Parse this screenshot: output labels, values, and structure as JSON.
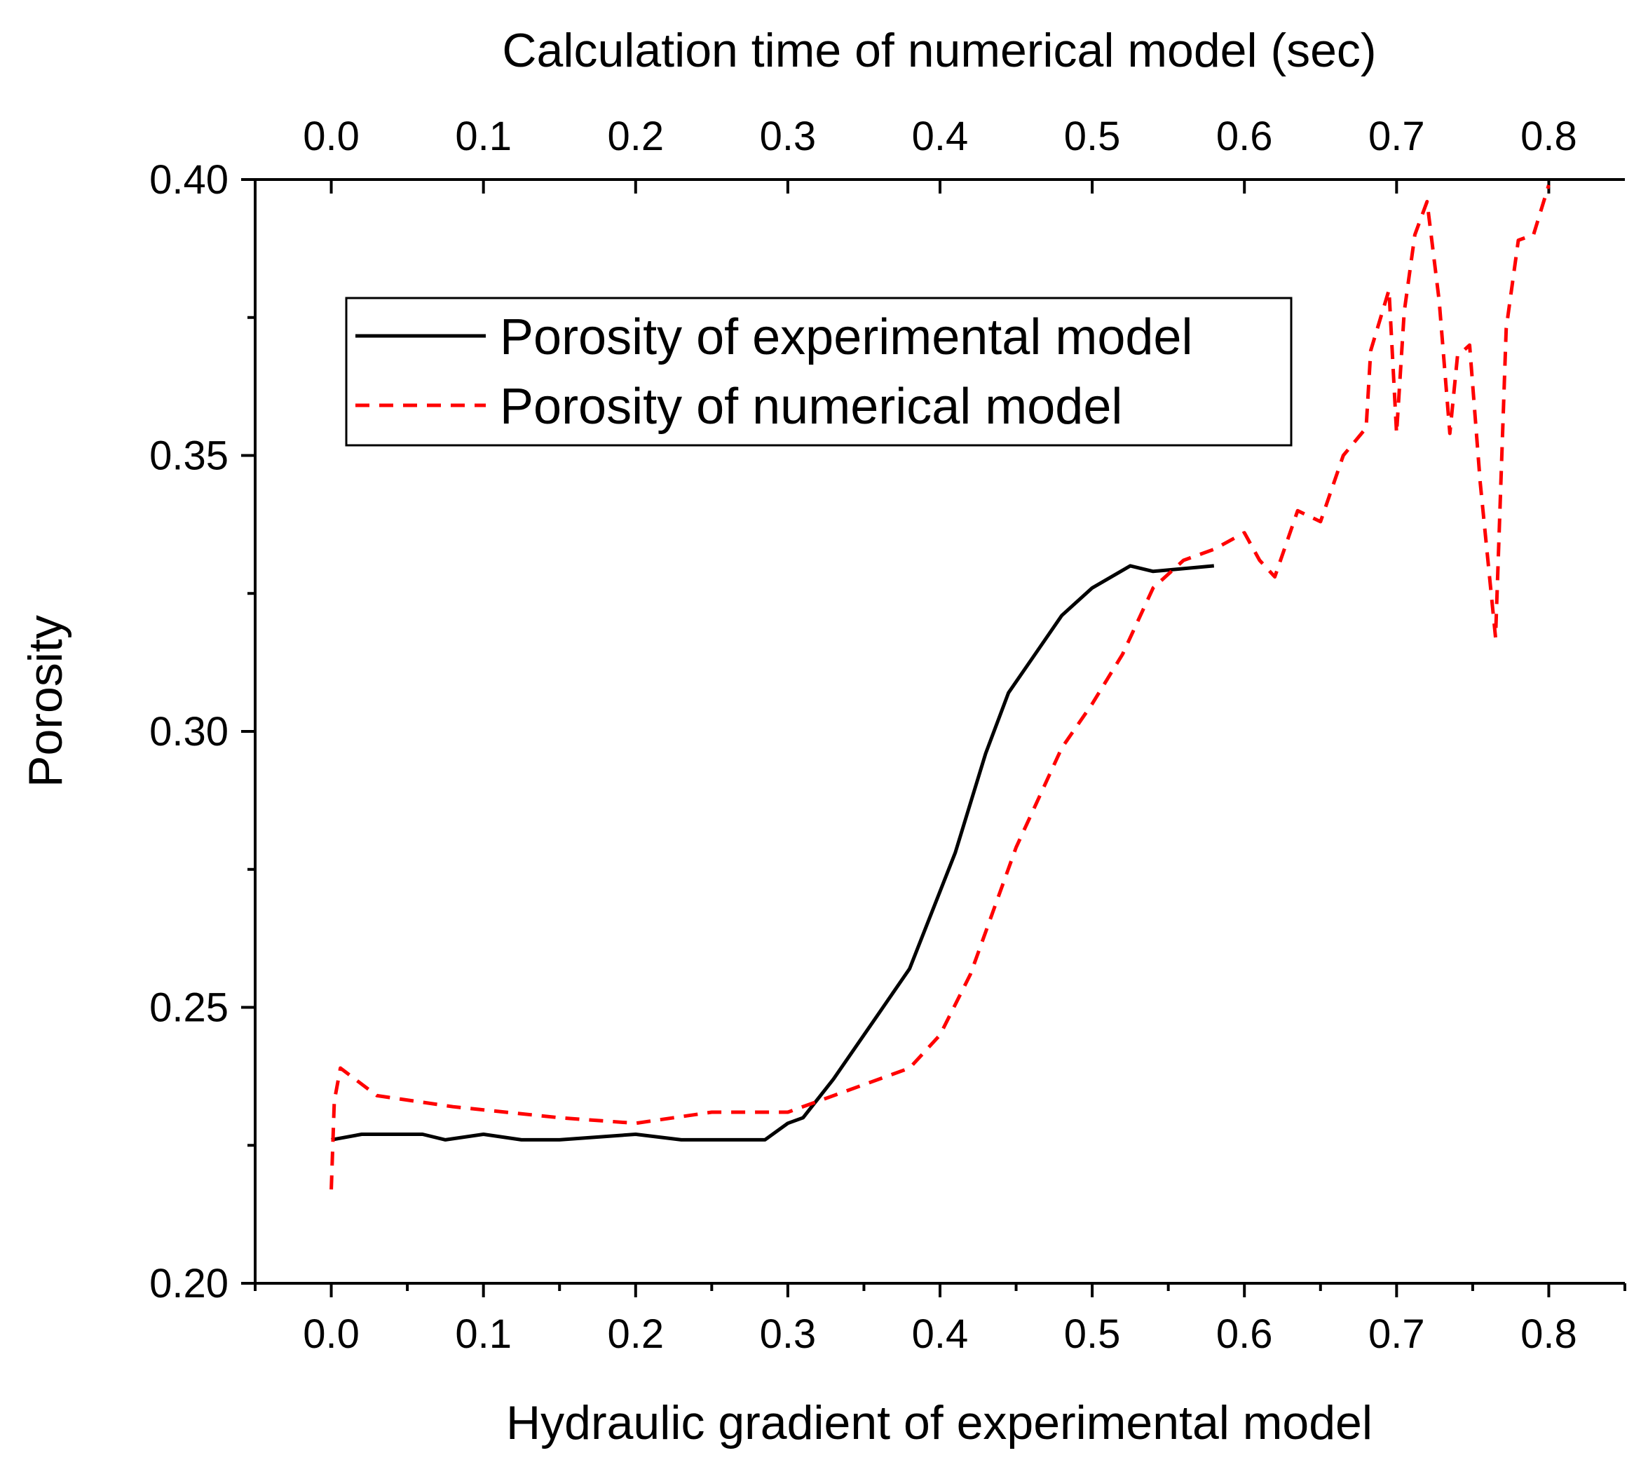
{
  "chart_data": {
    "type": "line",
    "title": "",
    "xlabel": "Hydraulic gradient of experimental model",
    "x2label": "Calculation time of numerical model (sec)",
    "ylabel": "Porosity",
    "xlim": [
      -0.05,
      0.85
    ],
    "ylim": [
      0.2,
      0.4
    ],
    "x_ticks": [
      "0.0",
      "0.1",
      "0.2",
      "0.3",
      "0.4",
      "0.5",
      "0.6",
      "0.7",
      "0.8"
    ],
    "x_tick_values": [
      0.0,
      0.1,
      0.2,
      0.3,
      0.4,
      0.5,
      0.6,
      0.7,
      0.8
    ],
    "x2_ticks": [
      "0.0",
      "0.1",
      "0.2",
      "0.3",
      "0.4",
      "0.5",
      "0.6",
      "0.7",
      "0.8"
    ],
    "x2_tick_values": [
      0.0,
      0.1,
      0.2,
      0.3,
      0.4,
      0.5,
      0.6,
      0.7,
      0.8
    ],
    "y_ticks": [
      "0.20",
      "0.25",
      "0.30",
      "0.35",
      "0.40"
    ],
    "y_tick_values": [
      0.2,
      0.25,
      0.3,
      0.35,
      0.4
    ],
    "legend_position": "upper-left",
    "series": [
      {
        "name": "Porosity of experimental model",
        "color": "#000000",
        "style": "solid",
        "x": [
          0.0,
          0.02,
          0.06,
          0.075,
          0.1,
          0.125,
          0.15,
          0.2,
          0.23,
          0.25,
          0.285,
          0.3,
          0.31,
          0.33,
          0.36,
          0.38,
          0.41,
          0.43,
          0.445,
          0.465,
          0.48,
          0.5,
          0.525,
          0.54,
          0.58
        ],
        "values": [
          0.226,
          0.227,
          0.227,
          0.226,
          0.227,
          0.226,
          0.226,
          0.227,
          0.226,
          0.226,
          0.226,
          0.229,
          0.23,
          0.237,
          0.249,
          0.257,
          0.278,
          0.296,
          0.307,
          0.315,
          0.321,
          0.326,
          0.33,
          0.329,
          0.33
        ]
      },
      {
        "name": "Porosity of numerical model",
        "color": "#ff0000",
        "style": "dashed",
        "x": [
          0.0,
          0.002,
          0.006,
          0.03,
          0.08,
          0.15,
          0.2,
          0.25,
          0.3,
          0.35,
          0.38,
          0.4,
          0.42,
          0.45,
          0.48,
          0.5,
          0.52,
          0.54,
          0.56,
          0.58,
          0.6,
          0.61,
          0.62,
          0.635,
          0.65,
          0.665,
          0.68,
          0.683,
          0.695,
          0.7,
          0.705,
          0.712,
          0.72,
          0.728,
          0.735,
          0.74,
          0.748,
          0.755,
          0.765,
          0.772,
          0.78,
          0.79,
          0.8
        ],
        "values": [
          0.217,
          0.233,
          0.239,
          0.234,
          0.232,
          0.23,
          0.229,
          0.231,
          0.231,
          0.236,
          0.239,
          0.245,
          0.256,
          0.279,
          0.297,
          0.305,
          0.314,
          0.326,
          0.331,
          0.333,
          0.336,
          0.331,
          0.328,
          0.34,
          0.338,
          0.35,
          0.355,
          0.369,
          0.38,
          0.354,
          0.376,
          0.39,
          0.396,
          0.378,
          0.354,
          0.368,
          0.37,
          0.345,
          0.317,
          0.373,
          0.389,
          0.39,
          0.399
        ]
      }
    ]
  }
}
